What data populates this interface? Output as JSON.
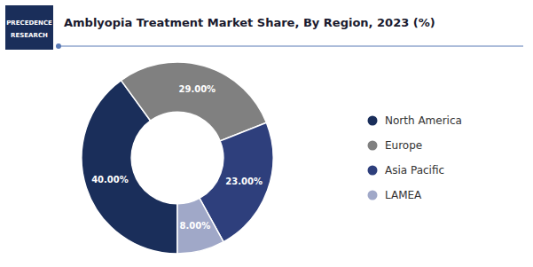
{
  "chart_data": {
    "type": "pie",
    "title": "Amblyopia Treatment Market Share, By Region, 2023 (%)",
    "categories": [
      "North America",
      "Europe",
      "Asia Pacific",
      "LAMEA"
    ],
    "values": [
      40.0,
      29.0,
      23.0,
      8.0
    ],
    "value_labels": [
      "40.00%",
      "29.00%",
      "23.00%",
      "8.00%"
    ],
    "colors": [
      "#1a2e5a",
      "#808080",
      "#2e3f7c",
      "#a0a8c8"
    ],
    "data_labels": true,
    "legend": "right",
    "annotations": [
      "PRECEDENCE",
      "RESEARCH"
    ]
  }
}
